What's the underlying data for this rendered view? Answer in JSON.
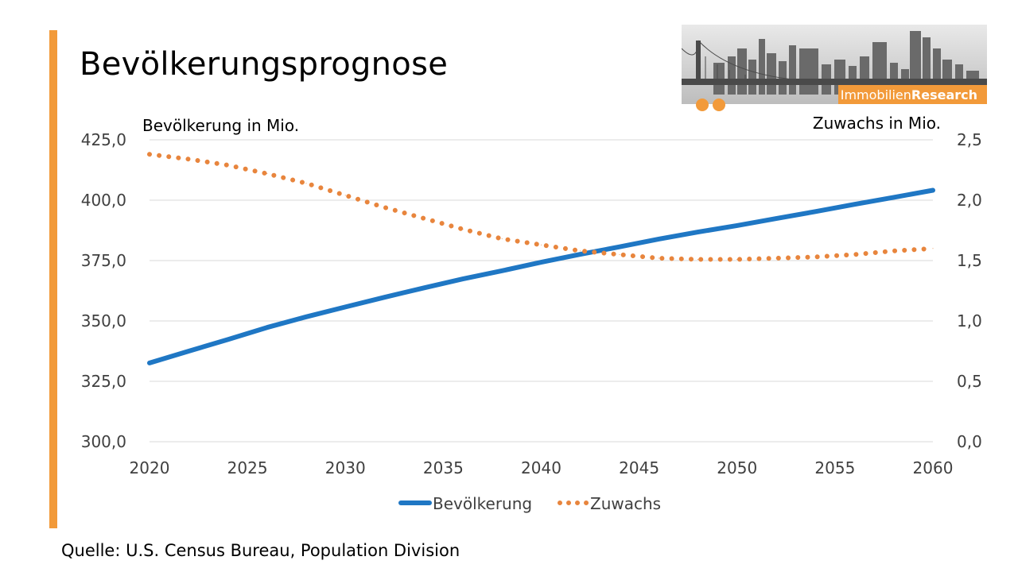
{
  "slide": {
    "title": "Bevölkerungsprognose",
    "source": "Quelle: U.S. Census Bureau, Population Division",
    "logo_text_normal": "Immobilien",
    "logo_text_bold": "Research",
    "accent_color": "#f29a3a"
  },
  "chart_data": {
    "type": "line",
    "x": [
      2020,
      2022,
      2024,
      2026,
      2028,
      2030,
      2032,
      2034,
      2036,
      2038,
      2040,
      2042,
      2044,
      2046,
      2048,
      2050,
      2052,
      2054,
      2056,
      2058,
      2060
    ],
    "series": [
      {
        "name": "Bevölkerung",
        "axis": "left",
        "style": "solid",
        "color": "#1f77c4",
        "values": [
          332.6,
          337.5,
          342.3,
          347.3,
          351.7,
          355.8,
          359.8,
          363.7,
          367.4,
          370.8,
          374.3,
          377.6,
          380.7,
          383.9,
          386.8,
          389.5,
          392.4,
          395.3,
          398.3,
          401.2,
          404.1
        ]
      },
      {
        "name": "Zuwachs",
        "axis": "right",
        "style": "dotted",
        "color": "#e8853d",
        "values": [
          2.38,
          2.34,
          2.29,
          2.22,
          2.14,
          2.04,
          1.94,
          1.85,
          1.76,
          1.68,
          1.63,
          1.58,
          1.55,
          1.52,
          1.51,
          1.51,
          1.52,
          1.53,
          1.55,
          1.58,
          1.6
        ]
      }
    ],
    "ylabel_left": "Bevölkerung in Mio.",
    "ylabel_right": "Zuwachs in Mio.",
    "ylim_left": [
      300,
      425
    ],
    "ylim_right": [
      0,
      2.5
    ],
    "yticks_left": [
      "425,0",
      "400,0",
      "375,0",
      "350,0",
      "325,0",
      "300,0"
    ],
    "yticks_right": [
      "2,5",
      "2,0",
      "1,5",
      "1,0",
      "0,5",
      "0,0"
    ],
    "xticks": [
      "2020",
      "2025",
      "2030",
      "2035",
      "2040",
      "2045",
      "2050",
      "2055",
      "2060"
    ],
    "xlim": [
      2020,
      2060
    ],
    "grid": true,
    "legend_position": "bottom"
  }
}
